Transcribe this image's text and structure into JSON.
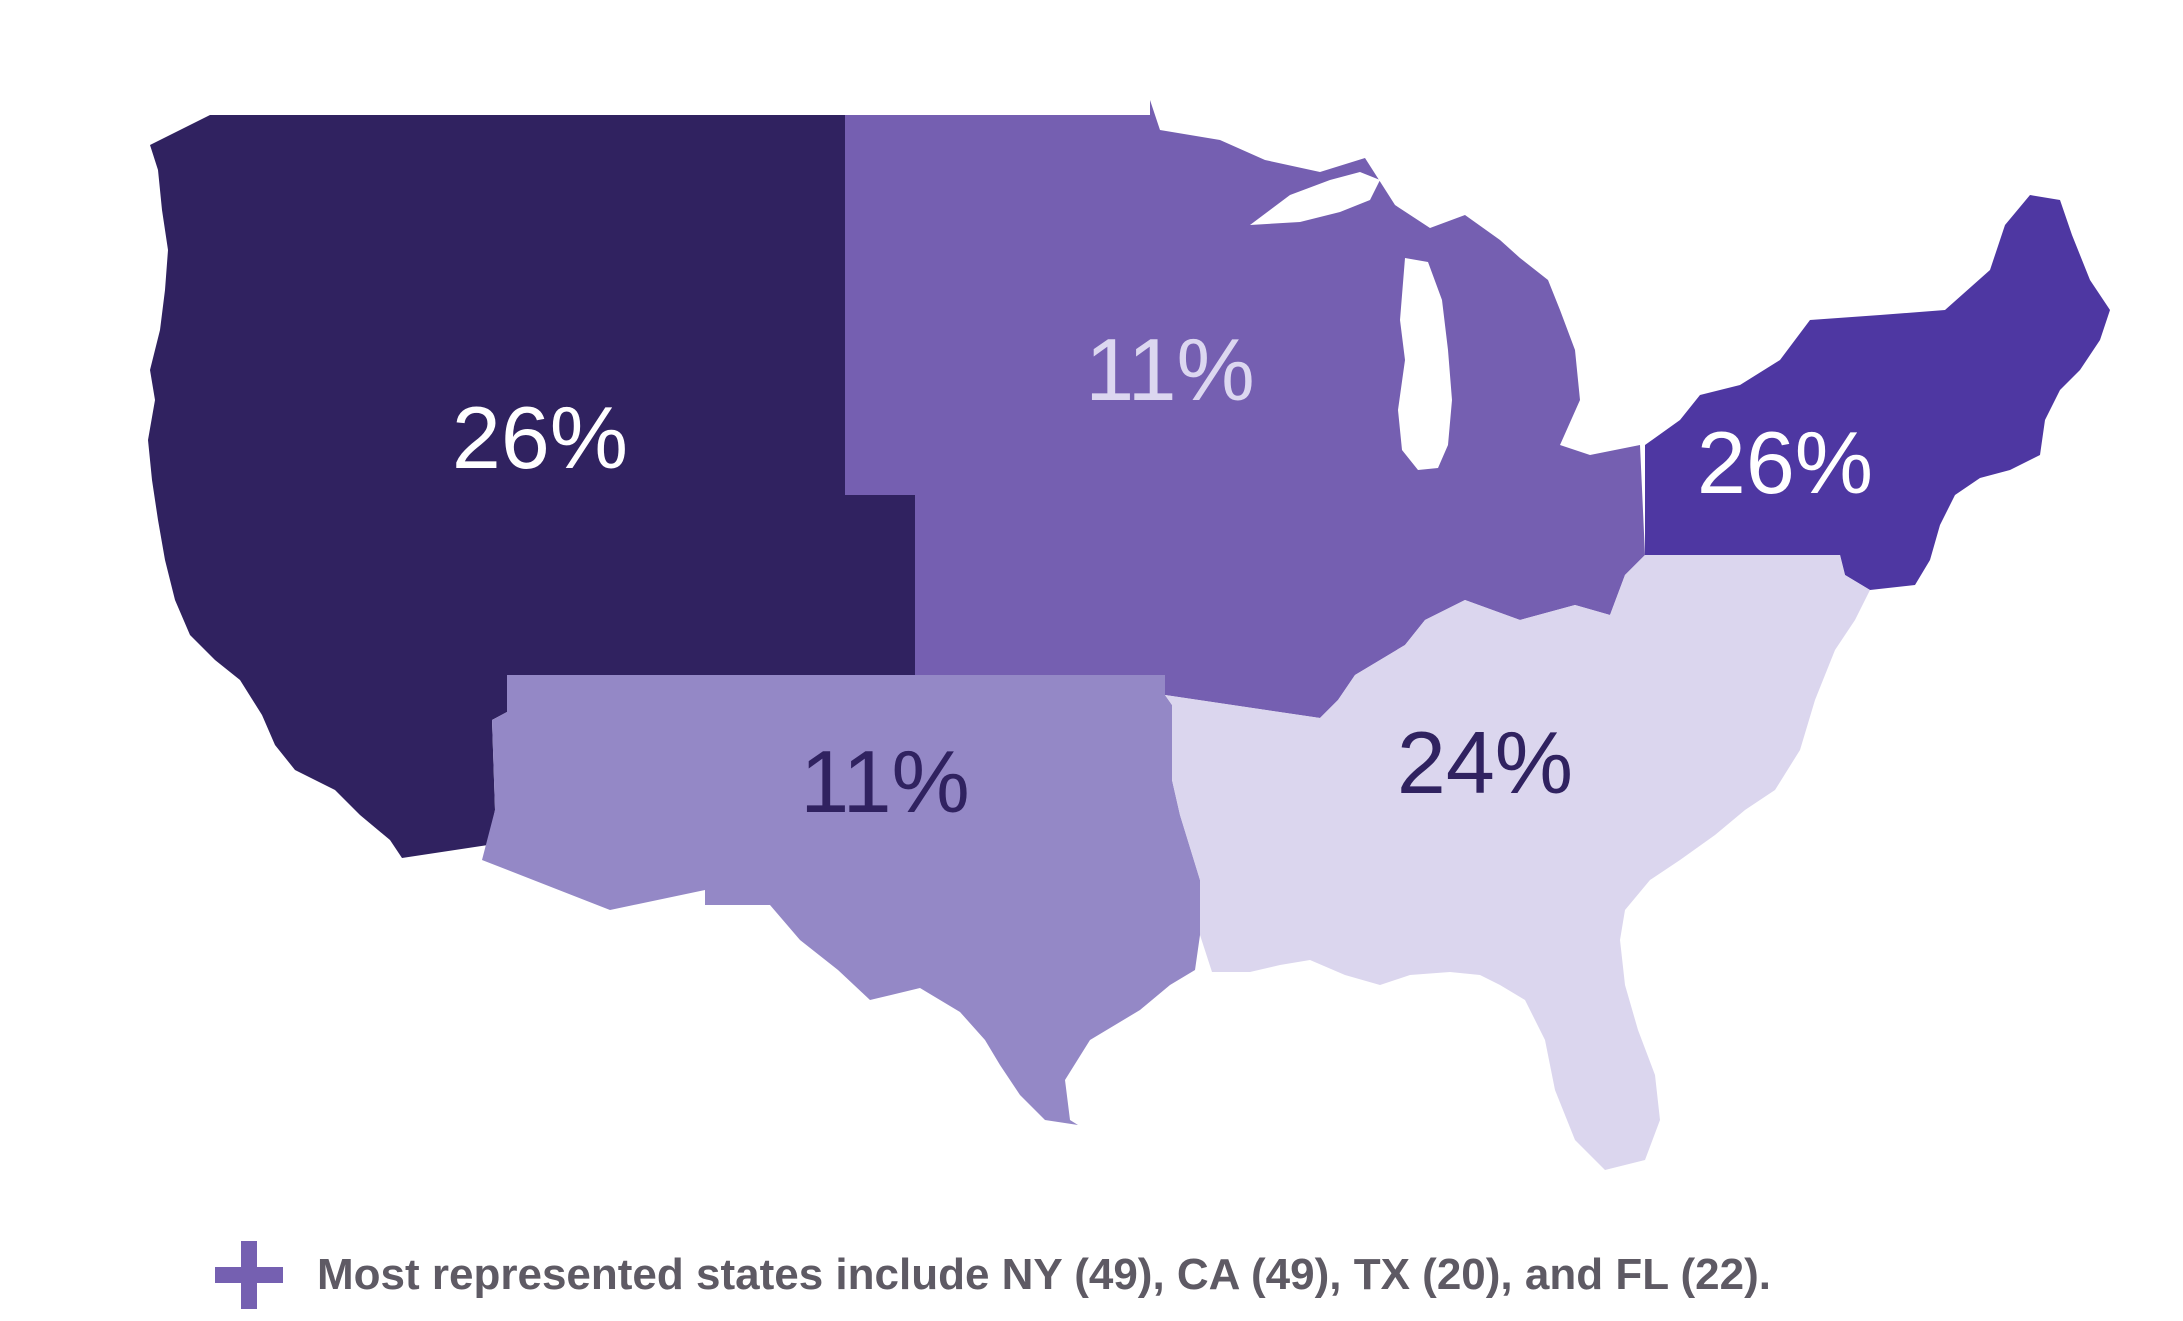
{
  "colors": {
    "west": "#302260",
    "midwest": "#755fb1",
    "southwest": "#9488c6",
    "southeast": "#dbd6ee",
    "northeast": "#4e37a2",
    "label_light": "#ffffff",
    "label_midwest": "#dcd7f0",
    "label_dark": "#302260",
    "footnote_text": "#5e5a64",
    "icon": "#7560b1"
  },
  "regions": {
    "west": {
      "label": "26%"
    },
    "midwest": {
      "label": "11%"
    },
    "southwest": {
      "label": "11%"
    },
    "southeast": {
      "label": "24%"
    },
    "northeast": {
      "label": "26%"
    }
  },
  "footnote": {
    "icon": "plus-icon",
    "text": "Most represented states include NY (49), CA (49), TX (20), and FL (22)."
  }
}
